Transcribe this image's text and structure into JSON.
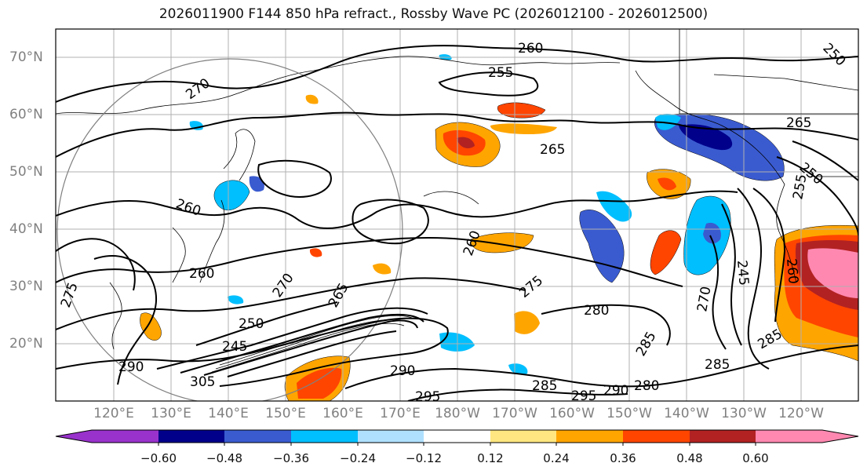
{
  "title": "2026011900 F144 850 hPa refract., Rossby Wave PC (2026012100 - 2026012500)",
  "map": {
    "latitude_labels": [
      "70°N",
      "60°N",
      "50°N",
      "40°N",
      "30°N",
      "20°N"
    ],
    "longitude_labels": [
      "120°E",
      "130°E",
      "140°E",
      "150°E",
      "160°E",
      "170°E",
      "180°W",
      "170°W",
      "160°W",
      "150°W",
      "140°W",
      "130°W",
      "120°W"
    ],
    "contour_labels": [
      "260",
      "255",
      "270",
      "265",
      "265",
      "260",
      "280",
      "285",
      "290",
      "295",
      "305",
      "290",
      "245",
      "260",
      "250",
      "275",
      "260",
      "270",
      "265",
      "285",
      "285",
      "280",
      "295",
      "290",
      "275",
      "270",
      "245",
      "260",
      "255",
      "250",
      "250",
      "285",
      "295",
      "280"
    ],
    "colorbar": {
      "ticks": [
        "−0.60",
        "−0.48",
        "−0.36",
        "−0.24",
        "−0.12",
        "0.12",
        "0.24",
        "0.36",
        "0.48",
        "0.60"
      ],
      "colors": [
        "#9932cc",
        "#00008b",
        "#3a5bd0",
        "#00bfff",
        "#b0e0ff",
        "#ffffff",
        "#ffe680",
        "#ffa500",
        "#ff4500",
        "#b22222",
        "#ff88b0",
        "#ff88b0"
      ]
    }
  }
}
